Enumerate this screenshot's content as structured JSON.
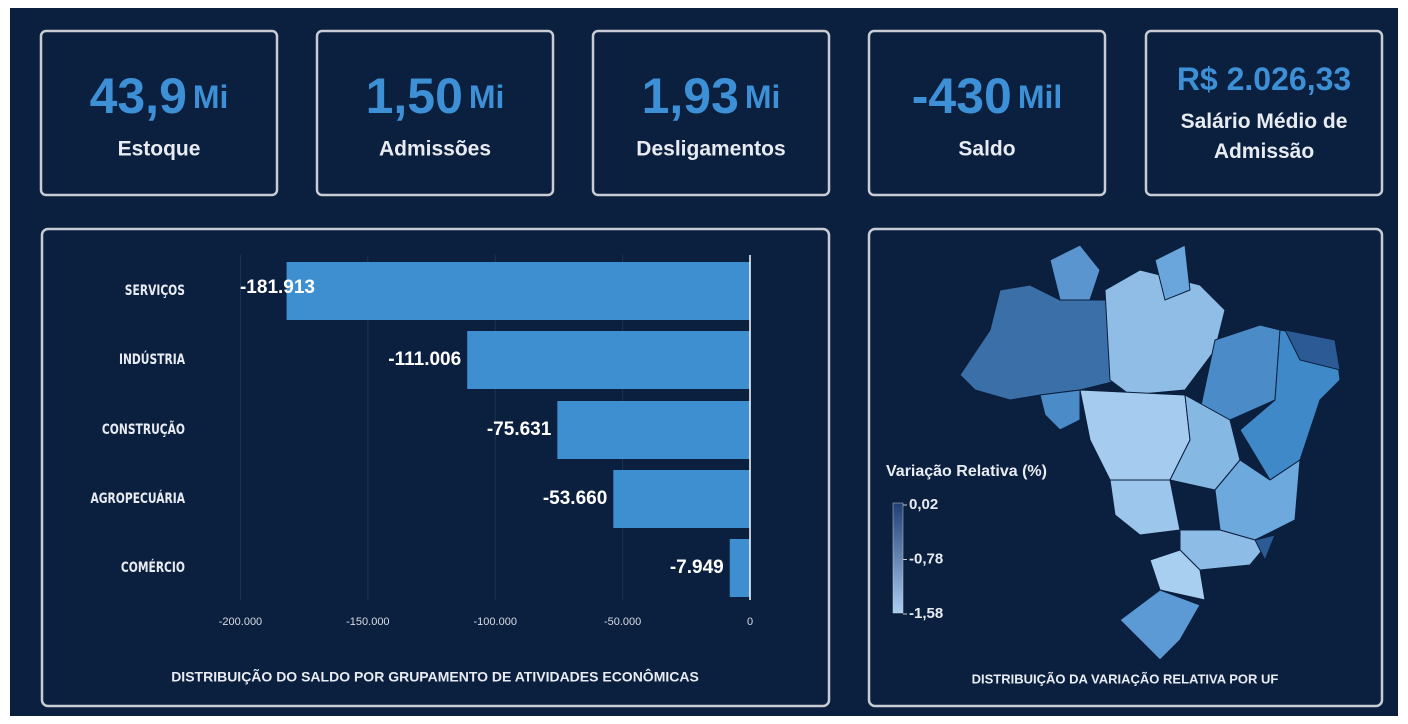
{
  "kpis": [
    {
      "value": "43,9",
      "unit": "Mi",
      "label": "Estoque"
    },
    {
      "value": "1,50",
      "unit": "Mi",
      "label": "Admissões"
    },
    {
      "value": "1,93",
      "unit": "Mi",
      "label": "Desligamentos"
    },
    {
      "value": "-430",
      "unit": "Mil",
      "label": "Saldo"
    },
    {
      "value": "R$ 2.026,33",
      "label": "Salário Médio de Admissão"
    }
  ],
  "chart_data": [
    {
      "type": "bar",
      "orientation": "horizontal",
      "title": "DISTRIBUIÇÃO DO SALDO POR GRUPAMENTO DE ATIVIDADES ECONÔMICAS",
      "categories": [
        "SERVIÇOS",
        "INDÚSTRIA",
        "CONSTRUÇÃO",
        "AGROPECUÁRIA",
        "COMÉRCIO"
      ],
      "values": [
        -181913,
        -111006,
        -75631,
        -53660,
        -7949
      ],
      "value_labels": [
        "-181.913",
        "-111.006",
        "-75.631",
        "-53.660",
        "-7.949"
      ],
      "color": "#3d8fcf",
      "xlim": [
        -210000,
        0
      ],
      "xticks": [
        {
          "value": -200000,
          "label": "-200.000"
        },
        {
          "value": -150000,
          "label": "-150.000"
        },
        {
          "value": -100000,
          "label": "-100.000"
        },
        {
          "value": -50000,
          "label": "-50.000"
        },
        0
      ],
      "grid": true
    },
    {
      "type": "choropleth",
      "title": "DISTRIBUIÇÃO DA VARIAÇÃO RELATIVA POR UF",
      "legend_title": "Variação Relativa (%)",
      "colorbar_lim": [
        0.02,
        -1.58
      ],
      "colorbar_colors": [
        "#1f3f73",
        "#a9cff0"
      ],
      "colorbar_ticks": [
        {
          "value": 0.02,
          "label": "0,02"
        },
        {
          "value": -0.78,
          "label": "-0,78"
        },
        {
          "value": -1.58,
          "label": "-1,58"
        }
      ]
    }
  ]
}
